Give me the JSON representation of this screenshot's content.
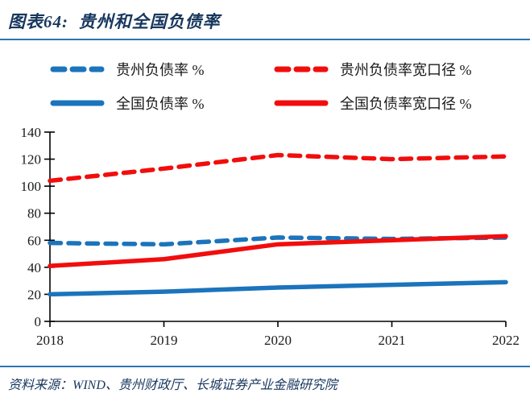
{
  "header": {
    "title": "图表64:  贵州和全国负债率"
  },
  "colors": {
    "accent": "#2E74B5",
    "title_text": "#17375E",
    "blue_series": "#1B74BC",
    "red_series": "#F20D0D",
    "axis": "#000000",
    "tick_text": "#1a1a1a"
  },
  "legend": {
    "items": [
      {
        "label": "贵州负债率 %",
        "color": "#1B74BC",
        "style": "dashed"
      },
      {
        "label": "贵州负债率宽口径 %",
        "color": "#F20D0D",
        "style": "dashed"
      },
      {
        "label": "全国负债率 %",
        "color": "#1B74BC",
        "style": "solid"
      },
      {
        "label": "全国负债率宽口径 %",
        "color": "#F20D0D",
        "style": "solid"
      }
    ]
  },
  "chart_data": {
    "type": "line",
    "title": "图表64: 贵州和全国负债率",
    "x": [
      "2018",
      "2019",
      "2020",
      "2021",
      "2022"
    ],
    "series": [
      {
        "name": "贵州负债率 %",
        "color": "#1B74BC",
        "style": "dashed",
        "values": [
          58,
          57,
          62,
          61,
          62
        ]
      },
      {
        "name": "贵州负债率宽口径 %",
        "color": "#F20D0D",
        "style": "dashed",
        "values": [
          104,
          113,
          123,
          120,
          122
        ]
      },
      {
        "name": "全国负债率 %",
        "color": "#1B74BC",
        "style": "solid",
        "values": [
          20,
          22,
          25,
          27,
          29
        ]
      },
      {
        "name": "全国负债率宽口径 %",
        "color": "#F20D0D",
        "style": "solid",
        "values": [
          41,
          46,
          57,
          60,
          63
        ]
      }
    ],
    "xlabel": "",
    "ylabel": "",
    "ylim": [
      0,
      140
    ],
    "ytick_step": 20,
    "grid": false,
    "legend_position": "top"
  },
  "footer": {
    "source": "资料来源：WIND、贵州财政厅、长城证券产业金融研究院"
  }
}
